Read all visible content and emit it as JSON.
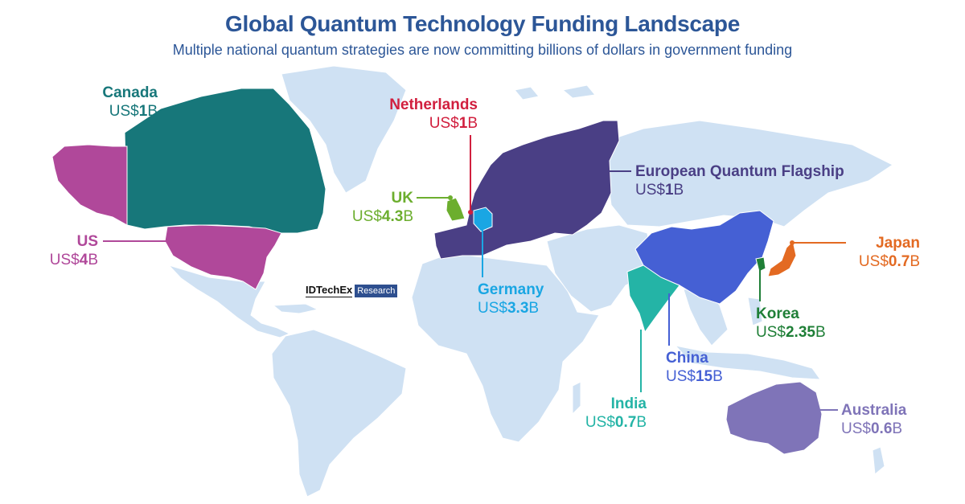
{
  "header": {
    "title": "Global Quantum Technology Funding Landscape",
    "subtitle": "Multiple national quantum strategies are now committing billions of dollars in government funding"
  },
  "logo": {
    "brand": "IDTechEx",
    "tag": "Research"
  },
  "colors": {
    "land": "#cfe1f3",
    "border": "#ffffff",
    "canada": "#17777a",
    "us": "#b0489a",
    "uk": "#6cae2e",
    "netherlands": "#d11f3e",
    "eu": "#4a3f85",
    "germany": "#1aa6e3",
    "china": "#4560d4",
    "india": "#24b4a6",
    "japan": "#e36a22",
    "korea": "#1f7f37",
    "australia": "#7f74b8"
  },
  "labels": {
    "canada": {
      "name": "Canada",
      "prefix": "US$",
      "amount": "1",
      "suffix": "B"
    },
    "us": {
      "name": "US",
      "prefix": "US$",
      "amount": "4",
      "suffix": "B"
    },
    "uk": {
      "name": "UK",
      "prefix": "US$",
      "amount": "4.3",
      "suffix": "B"
    },
    "netherlands": {
      "name": "Netherlands",
      "prefix": "US$",
      "amount": "1",
      "suffix": "B"
    },
    "eu": {
      "name": "European Quantum Flagship",
      "prefix": "US$",
      "amount": "1",
      "suffix": "B"
    },
    "germany": {
      "name": "Germany",
      "prefix": "US$",
      "amount": "3.3",
      "suffix": "B"
    },
    "japan": {
      "name": "Japan",
      "prefix": "US$",
      "amount": "0.7",
      "suffix": "B"
    },
    "korea": {
      "name": "Korea",
      "prefix": "US$",
      "amount": "2.35",
      "suffix": "B"
    },
    "china": {
      "name": "China",
      "prefix": "US$",
      "amount": "15",
      "suffix": "B"
    },
    "india": {
      "name": "India",
      "prefix": "US$",
      "amount": "0.7",
      "suffix": "B"
    },
    "australia": {
      "name": "Australia",
      "prefix": "US$",
      "amount": "0.6",
      "suffix": "B"
    }
  }
}
